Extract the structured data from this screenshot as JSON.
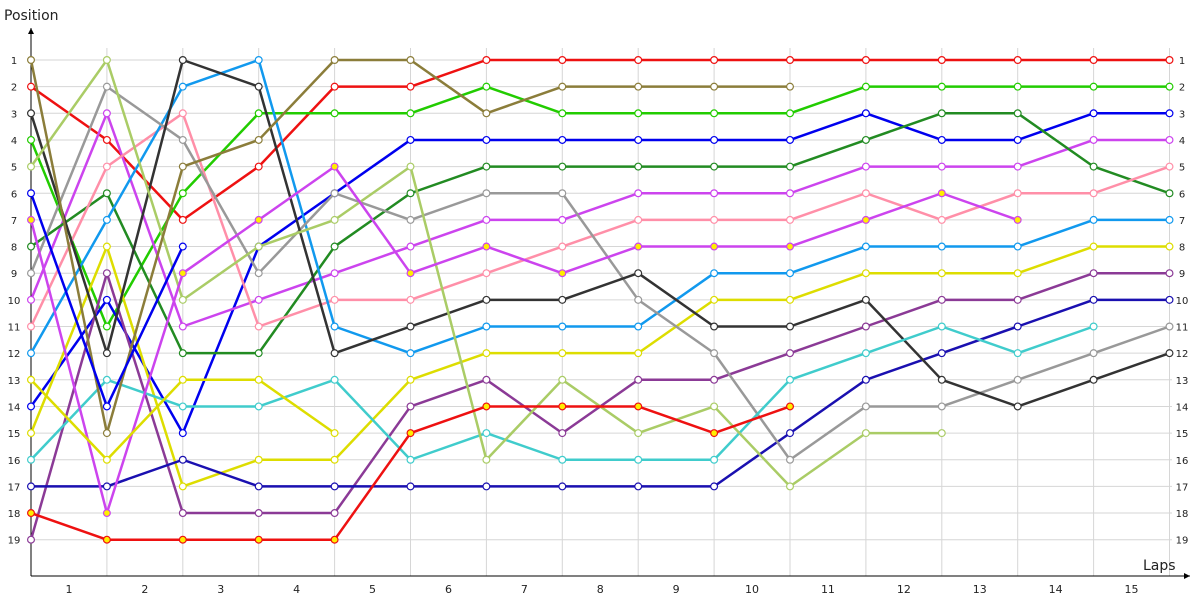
{
  "chart_data": {
    "type": "line",
    "ylabel": "Position",
    "xlabel": "Laps",
    "x_points": [
      0,
      1,
      2,
      3,
      4,
      5,
      6,
      7,
      8,
      9,
      10,
      11,
      12,
      13,
      14,
      15
    ],
    "x_tick_labels": [
      "1",
      "2",
      "3",
      "4",
      "5",
      "6",
      "7",
      "8",
      "9",
      "10",
      "11",
      "12",
      "13",
      "14",
      "15"
    ],
    "y_tick_labels": [
      "1",
      "2",
      "3",
      "4",
      "5",
      "6",
      "7",
      "8",
      "9",
      "10",
      "11",
      "12",
      "13",
      "14",
      "15",
      "16",
      "17",
      "18",
      "19"
    ],
    "ylim": [
      1,
      19
    ],
    "y_inverted": true,
    "grid": true,
    "series": [
      {
        "color": "#ee1111",
        "marker_fill": "#ffffff",
        "values": [
          2,
          4,
          7,
          5,
          2,
          2,
          1,
          1,
          1,
          1,
          1,
          1,
          1,
          1,
          1,
          1
        ]
      },
      {
        "color": "#22cc00",
        "marker_fill": "#ffffff",
        "values": [
          4,
          11,
          6,
          3,
          3,
          3,
          2,
          3,
          3,
          3,
          3,
          2,
          2,
          2,
          2,
          2
        ]
      },
      {
        "color": "#0000ee",
        "marker_fill": "#ffffff",
        "values": [
          14,
          10,
          15,
          8,
          6,
          4,
          4,
          4,
          4,
          4,
          4,
          3,
          4,
          4,
          3,
          3
        ]
      },
      {
        "color": "#cc44ee",
        "marker_fill": "#ffffff",
        "values": [
          10,
          3,
          11,
          10,
          9,
          8,
          7,
          7,
          6,
          6,
          6,
          5,
          5,
          5,
          4,
          4
        ]
      },
      {
        "color": "#228b22",
        "marker_fill": "#ffffff",
        "values": [
          8,
          6,
          12,
          12,
          8,
          6,
          5,
          5,
          5,
          5,
          5,
          4,
          3,
          3,
          5,
          6
        ]
      },
      {
        "color": "#ff8fa8",
        "marker_fill": "#ffffff",
        "values": [
          11,
          5,
          3,
          11,
          10,
          10,
          9,
          8,
          7,
          7,
          7,
          6,
          7,
          6,
          6,
          5
        ]
      },
      {
        "color": "#1199ee",
        "marker_fill": "#ffffff",
        "values": [
          12,
          7,
          2,
          1,
          11,
          12,
          11,
          11,
          11,
          9,
          9,
          8,
          8,
          8,
          7,
          7
        ]
      },
      {
        "color": "#dddd00",
        "marker_fill": "#ffffff",
        "values": [
          15,
          8,
          17,
          16,
          16,
          13,
          12,
          12,
          12,
          10,
          10,
          9,
          9,
          9,
          8,
          8
        ]
      },
      {
        "color": "#8b3a96",
        "marker_fill": "#ffffff",
        "values": [
          19,
          9,
          18,
          18,
          18,
          14,
          13,
          15,
          13,
          13,
          12,
          11,
          10,
          10,
          9,
          9
        ]
      },
      {
        "color": "#1a10b0",
        "marker_fill": "#ffffff",
        "values": [
          17,
          17,
          16,
          17,
          17,
          17,
          17,
          17,
          17,
          17,
          15,
          13,
          12,
          11,
          10,
          10
        ]
      },
      {
        "color": "#999999",
        "marker_fill": "#ffffff",
        "values": [
          9,
          2,
          4,
          9,
          6,
          7,
          6,
          6,
          10,
          12,
          16,
          14,
          14,
          13,
          12,
          11
        ]
      },
      {
        "color": "#333333",
        "marker_fill": "#ffffff",
        "values": [
          3,
          12,
          1,
          2,
          12,
          11,
          10,
          10,
          9,
          11,
          11,
          10,
          13,
          14,
          13,
          12
        ]
      },
      {
        "color": "#40cccc",
        "marker_fill": "#ffffff",
        "values": [
          16,
          13,
          14,
          14,
          13,
          16,
          15,
          16,
          16,
          16,
          13,
          12,
          11,
          12,
          11
        ]
      },
      {
        "color": "#aacc66",
        "marker_fill": "#ffffff",
        "values": [
          5,
          1,
          10,
          8,
          7,
          5,
          16,
          13,
          15,
          14,
          17,
          15,
          15
        ]
      },
      {
        "color": "#8b7d3a",
        "marker_fill": "#ffffff",
        "values": [
          1,
          15,
          5,
          4,
          1,
          1,
          3,
          2,
          2,
          2,
          2
        ]
      },
      {
        "color": "#ee1111",
        "marker_fill": "#ffee00",
        "values": [
          18,
          19,
          19,
          19,
          19,
          15,
          14,
          14,
          14,
          15,
          14
        ]
      },
      {
        "color": "#cc44ee",
        "marker_fill": "#ffee00",
        "values": [
          7,
          18,
          9,
          7,
          5,
          9,
          8,
          9,
          8,
          8,
          8,
          7,
          6,
          7
        ]
      },
      {
        "color": "#dddd00",
        "marker_fill": "#ffffff",
        "values": [
          13,
          16,
          13,
          13,
          15
        ]
      },
      {
        "color": "#0000ee",
        "marker_fill": "#ffffff",
        "values": [
          6,
          14,
          8
        ]
      }
    ]
  }
}
